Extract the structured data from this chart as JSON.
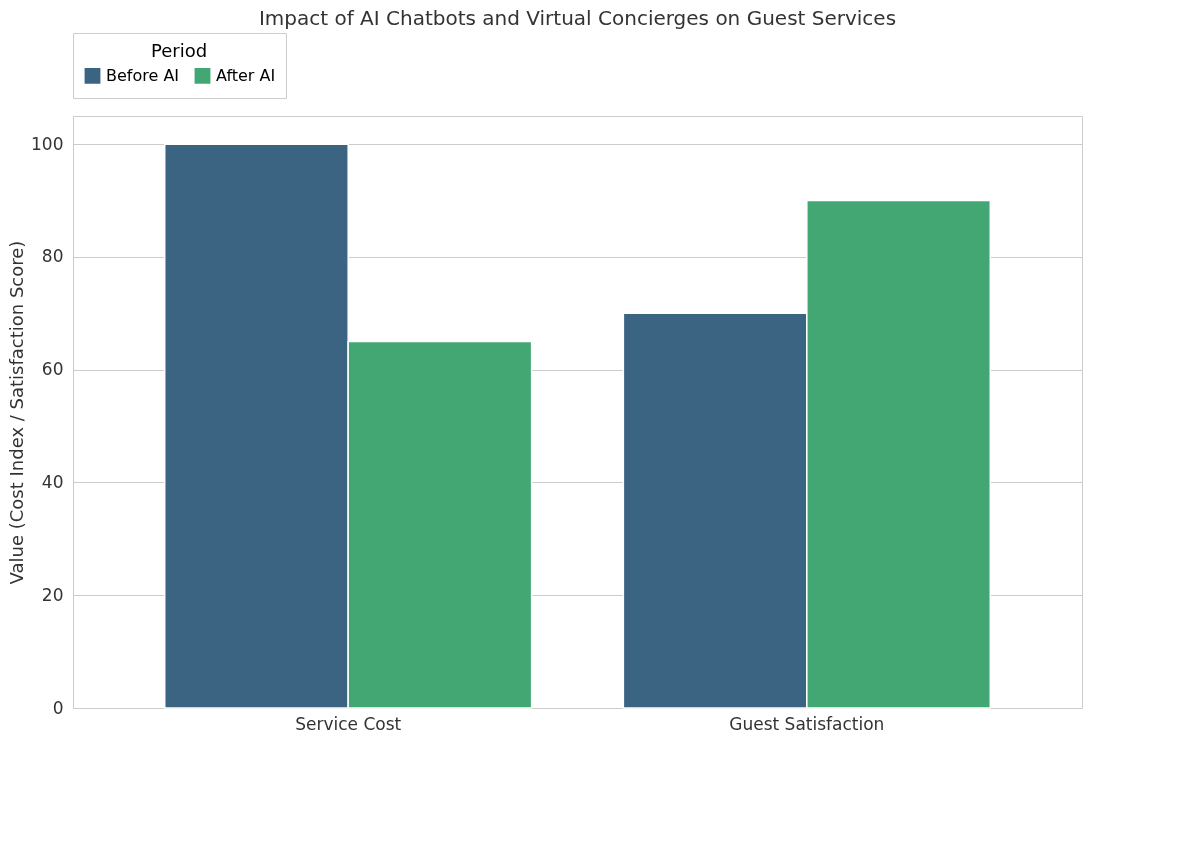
{
  "chart_data": {
    "type": "bar",
    "title": "Impact of AI Chatbots and Virtual Concierges on Guest Services",
    "ylabel": "Value (Cost Index / Satisfaction Score)",
    "legend_title": "Period",
    "categories": [
      "Service Cost",
      "Guest Satisfaction"
    ],
    "series": [
      {
        "name": "Before AI",
        "color": "#3b6382",
        "values": [
          100,
          70
        ]
      },
      {
        "name": "After AI",
        "color": "#43a774",
        "values": [
          65,
          90
        ]
      }
    ],
    "ylim": [
      0,
      105
    ],
    "yticks": [
      0,
      20,
      40,
      60,
      80,
      100
    ],
    "grid": "y",
    "legend": "top"
  }
}
